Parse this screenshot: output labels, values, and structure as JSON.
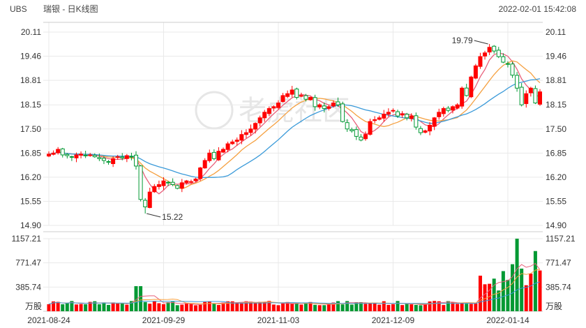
{
  "header": {
    "symbol": "UBS",
    "title": "瑞银 - 日K线图",
    "timestamp": "2022-02-01 15:42:08"
  },
  "watermark": "老虎社区",
  "colors": {
    "up": "#ff0000",
    "down": "#009933",
    "ma5": "#e8607a",
    "ma10": "#f5a040",
    "ma20": "#3a9ad9",
    "grid": "#e9e9e9",
    "axis": "#cccccc"
  },
  "chart_data": {
    "type": "candlestick",
    "price_axis": {
      "ticks": [
        "20.11",
        "19.46",
        "18.81",
        "18.15",
        "17.50",
        "16.85",
        "16.20",
        "15.55",
        "14.90"
      ],
      "range": [
        14.9,
        20.11
      ]
    },
    "volume_axis": {
      "ticks": [
        "1157.21",
        "771.47",
        "385.74"
      ],
      "unit": "万股",
      "range": [
        0,
        1157.21
      ]
    },
    "x_labels": [
      "2021-08-24",
      "2021-09-29",
      "2021-11-03",
      "2021-12-09",
      "2022-01-14"
    ],
    "annotations": [
      {
        "text": "19.79",
        "type": "high"
      },
      {
        "text": "15.22",
        "type": "low"
      }
    ],
    "closes": [
      16.82,
      16.85,
      16.95,
      16.8,
      16.78,
      16.75,
      16.8,
      16.82,
      16.78,
      16.8,
      16.75,
      16.7,
      16.65,
      16.6,
      16.7,
      16.75,
      16.72,
      16.78,
      16.76,
      16.5,
      15.6,
      15.4,
      15.8,
      15.95,
      16.0,
      16.1,
      16.05,
      16.0,
      15.9,
      16.05,
      16.1,
      16.08,
      16.15,
      16.45,
      16.65,
      16.85,
      16.7,
      16.9,
      16.95,
      17.1,
      17.15,
      17.2,
      17.35,
      17.4,
      17.5,
      17.65,
      17.8,
      17.95,
      18.05,
      18.1,
      18.2,
      18.4,
      18.45,
      18.55,
      18.35,
      18.4,
      18.3,
      18.35,
      18.1,
      18.15,
      18.05,
      18.1,
      18.2,
      18.15,
      17.7,
      17.5,
      17.45,
      17.3,
      17.2,
      17.35,
      17.7,
      17.75,
      17.8,
      17.9,
      17.95,
      18.0,
      17.85,
      17.9,
      17.8,
      17.85,
      17.55,
      17.4,
      17.45,
      17.6,
      17.8,
      17.95,
      18.05,
      18.0,
      18.1,
      18.15,
      18.6,
      18.4,
      18.9,
      19.2,
      19.45,
      19.55,
      19.7,
      19.6,
      19.45,
      19.3,
      19.25,
      18.95,
      18.6,
      18.15,
      18.45,
      18.6,
      18.2,
      18.5
    ]
  },
  "x_ticks": [
    {
      "label": "2021-08-24",
      "index": 0
    },
    {
      "label": "2021-09-29",
      "index": 25
    },
    {
      "label": "2021-11-03",
      "index": 50
    },
    {
      "label": "2021-12-09",
      "index": 75
    },
    {
      "label": "2022-01-14",
      "index": 100
    }
  ],
  "extremes": {
    "high": 19.79,
    "high_index": 96,
    "low": 15.22,
    "low_index": 21
  }
}
